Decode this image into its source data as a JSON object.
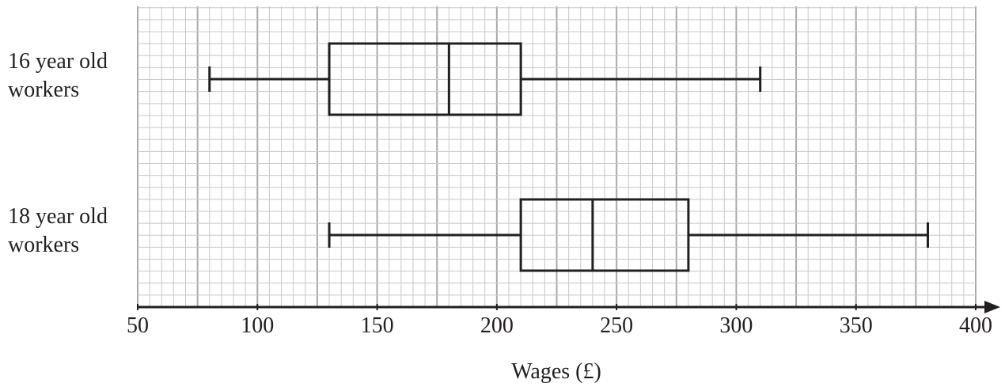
{
  "chart_data": {
    "type": "box",
    "categories": [
      "16 year old workers",
      "18 year old workers"
    ],
    "boxes": [
      {
        "min": 80,
        "q1": 130,
        "median": 180,
        "q3": 210,
        "max": 310
      },
      {
        "min": 130,
        "q1": 210,
        "median": 240,
        "q3": 280,
        "max": 380
      }
    ],
    "xlabel": "Wages (£)",
    "xlim": [
      50,
      400
    ],
    "xticks": [
      50,
      100,
      150,
      200,
      250,
      300,
      350,
      400
    ],
    "grid": {
      "minor": 5,
      "major": 25
    },
    "color": "#231f20"
  }
}
